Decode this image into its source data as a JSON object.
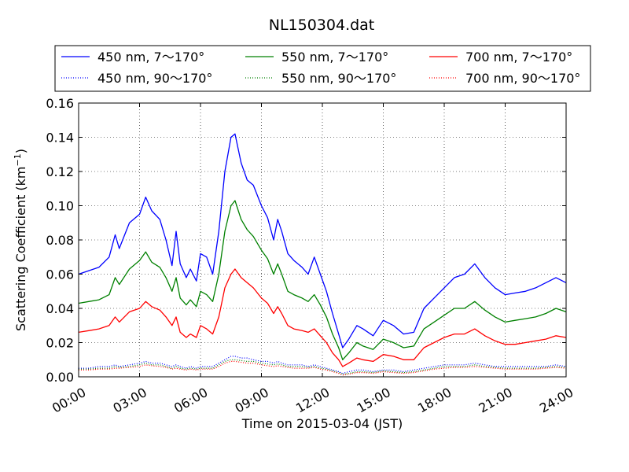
{
  "chart_data": {
    "type": "line",
    "title": "NL150304.dat",
    "xlabel": "Time on 2015-03-04 (JST)",
    "ylabel": "Scattering Coefficient (km",
    "ylabel_superscript": "−1",
    "ylabel_close": ")",
    "x_unit": "hours",
    "xlim": [
      0,
      24
    ],
    "ylim": [
      0,
      0.16
    ],
    "grid": true,
    "legend_position": "top, above plot",
    "xticks": [
      0,
      3,
      6,
      9,
      12,
      15,
      18,
      21,
      24
    ],
    "xtick_labels": [
      "00:00",
      "03:00",
      "06:00",
      "09:00",
      "12:00",
      "15:00",
      "18:00",
      "21:00",
      "24:00"
    ],
    "yticks": [
      0,
      0.02,
      0.04,
      0.06,
      0.08,
      0.1,
      0.12,
      0.14,
      0.16
    ],
    "ytick_labels": [
      "0.00",
      "0.02",
      "0.04",
      "0.06",
      "0.08",
      "0.10",
      "0.12",
      "0.14",
      "0.16"
    ],
    "x": [
      0,
      0.5,
      1,
      1.5,
      1.8,
      2,
      2.5,
      3,
      3.3,
      3.6,
      4,
      4.3,
      4.6,
      4.8,
      5,
      5.3,
      5.5,
      5.8,
      6,
      6.3,
      6.6,
      6.9,
      7.2,
      7.5,
      7.7,
      8,
      8.3,
      8.6,
      9,
      9.3,
      9.6,
      9.8,
      10,
      10.3,
      10.6,
      11,
      11.3,
      11.6,
      11.9,
      12.2,
      12.5,
      12.8,
      13.0,
      13.3,
      13.7,
      14,
      14.5,
      15,
      15.5,
      16,
      16.5,
      17,
      17.5,
      18,
      18.5,
      19,
      19.5,
      20,
      20.5,
      21,
      21.5,
      22,
      22.5,
      23,
      23.5,
      24
    ],
    "series": [
      {
        "name": "450 nm, 7～170°",
        "color": "#0000ff",
        "style": "solid",
        "values": [
          0.06,
          0.062,
          0.064,
          0.07,
          0.083,
          0.075,
          0.09,
          0.095,
          0.105,
          0.097,
          0.092,
          0.08,
          0.065,
          0.085,
          0.066,
          0.058,
          0.063,
          0.056,
          0.072,
          0.07,
          0.06,
          0.085,
          0.12,
          0.14,
          0.142,
          0.125,
          0.115,
          0.112,
          0.1,
          0.093,
          0.08,
          0.092,
          0.085,
          0.072,
          0.068,
          0.064,
          0.06,
          0.07,
          0.06,
          0.05,
          0.037,
          0.025,
          0.017,
          0.022,
          0.03,
          0.028,
          0.024,
          0.033,
          0.03,
          0.025,
          0.026,
          0.04,
          0.046,
          0.052,
          0.058,
          0.06,
          0.066,
          0.058,
          0.052,
          0.048,
          0.049,
          0.05,
          0.052,
          0.055,
          0.058,
          0.055
        ]
      },
      {
        "name": "550 nm, 7～170°",
        "color": "#008000",
        "style": "solid",
        "values": [
          0.043,
          0.044,
          0.045,
          0.048,
          0.058,
          0.054,
          0.063,
          0.068,
          0.073,
          0.067,
          0.064,
          0.058,
          0.05,
          0.058,
          0.046,
          0.042,
          0.045,
          0.041,
          0.05,
          0.048,
          0.044,
          0.06,
          0.085,
          0.1,
          0.103,
          0.092,
          0.086,
          0.082,
          0.074,
          0.069,
          0.06,
          0.066,
          0.06,
          0.05,
          0.048,
          0.046,
          0.044,
          0.048,
          0.042,
          0.035,
          0.025,
          0.017,
          0.01,
          0.014,
          0.02,
          0.018,
          0.016,
          0.022,
          0.02,
          0.017,
          0.018,
          0.028,
          0.032,
          0.036,
          0.04,
          0.04,
          0.044,
          0.039,
          0.035,
          0.032,
          0.033,
          0.034,
          0.035,
          0.037,
          0.04,
          0.038
        ]
      },
      {
        "name": "700 nm, 7～170°",
        "color": "#ff0000",
        "style": "solid",
        "values": [
          0.026,
          0.027,
          0.028,
          0.03,
          0.035,
          0.032,
          0.038,
          0.04,
          0.044,
          0.041,
          0.039,
          0.035,
          0.03,
          0.035,
          0.026,
          0.023,
          0.025,
          0.023,
          0.03,
          0.028,
          0.025,
          0.035,
          0.052,
          0.06,
          0.063,
          0.058,
          0.055,
          0.052,
          0.046,
          0.043,
          0.037,
          0.041,
          0.037,
          0.03,
          0.028,
          0.027,
          0.026,
          0.028,
          0.024,
          0.02,
          0.014,
          0.01,
          0.006,
          0.008,
          0.011,
          0.01,
          0.009,
          0.013,
          0.012,
          0.01,
          0.01,
          0.017,
          0.02,
          0.023,
          0.025,
          0.025,
          0.028,
          0.024,
          0.021,
          0.019,
          0.019,
          0.02,
          0.021,
          0.022,
          0.024,
          0.023
        ]
      },
      {
        "name": "450 nm, 90～170°",
        "color": "#0000ff",
        "style": "dotted",
        "values": [
          0.005,
          0.005,
          0.006,
          0.006,
          0.007,
          0.006,
          0.007,
          0.008,
          0.009,
          0.008,
          0.008,
          0.007,
          0.006,
          0.007,
          0.006,
          0.005,
          0.006,
          0.005,
          0.006,
          0.006,
          0.006,
          0.008,
          0.01,
          0.012,
          0.012,
          0.011,
          0.011,
          0.01,
          0.009,
          0.009,
          0.008,
          0.009,
          0.008,
          0.007,
          0.007,
          0.007,
          0.006,
          0.007,
          0.006,
          0.005,
          0.004,
          0.003,
          0.002,
          0.003,
          0.004,
          0.004,
          0.003,
          0.004,
          0.004,
          0.003,
          0.004,
          0.005,
          0.006,
          0.007,
          0.007,
          0.007,
          0.008,
          0.007,
          0.006,
          0.006,
          0.006,
          0.006,
          0.006,
          0.006,
          0.007,
          0.006
        ]
      },
      {
        "name": "550 nm, 90～170°",
        "color": "#008000",
        "style": "dotted",
        "values": [
          0.0045,
          0.0045,
          0.005,
          0.005,
          0.006,
          0.0055,
          0.006,
          0.007,
          0.008,
          0.007,
          0.007,
          0.006,
          0.005,
          0.006,
          0.005,
          0.0045,
          0.005,
          0.0045,
          0.005,
          0.005,
          0.005,
          0.007,
          0.009,
          0.01,
          0.01,
          0.0095,
          0.009,
          0.009,
          0.008,
          0.0075,
          0.007,
          0.0075,
          0.007,
          0.006,
          0.006,
          0.006,
          0.0055,
          0.006,
          0.005,
          0.0045,
          0.0035,
          0.0025,
          0.0015,
          0.002,
          0.003,
          0.003,
          0.0025,
          0.0035,
          0.003,
          0.0025,
          0.003,
          0.004,
          0.005,
          0.006,
          0.006,
          0.006,
          0.007,
          0.006,
          0.0055,
          0.005,
          0.005,
          0.005,
          0.005,
          0.0055,
          0.006,
          0.0055
        ]
      },
      {
        "name": "700 nm, 90～170°",
        "color": "#ff0000",
        "style": "dotted",
        "values": [
          0.004,
          0.004,
          0.0045,
          0.0045,
          0.005,
          0.005,
          0.0055,
          0.006,
          0.007,
          0.0065,
          0.006,
          0.0055,
          0.0045,
          0.005,
          0.0045,
          0.004,
          0.0045,
          0.004,
          0.0045,
          0.0045,
          0.0045,
          0.006,
          0.008,
          0.009,
          0.009,
          0.0085,
          0.008,
          0.008,
          0.007,
          0.0065,
          0.006,
          0.0065,
          0.006,
          0.0055,
          0.005,
          0.005,
          0.005,
          0.0055,
          0.0045,
          0.004,
          0.003,
          0.002,
          0.001,
          0.0015,
          0.0025,
          0.0025,
          0.002,
          0.003,
          0.0025,
          0.002,
          0.0025,
          0.0035,
          0.0045,
          0.005,
          0.0055,
          0.0055,
          0.006,
          0.0055,
          0.005,
          0.0045,
          0.0045,
          0.0045,
          0.0045,
          0.005,
          0.0055,
          0.005
        ]
      }
    ]
  }
}
